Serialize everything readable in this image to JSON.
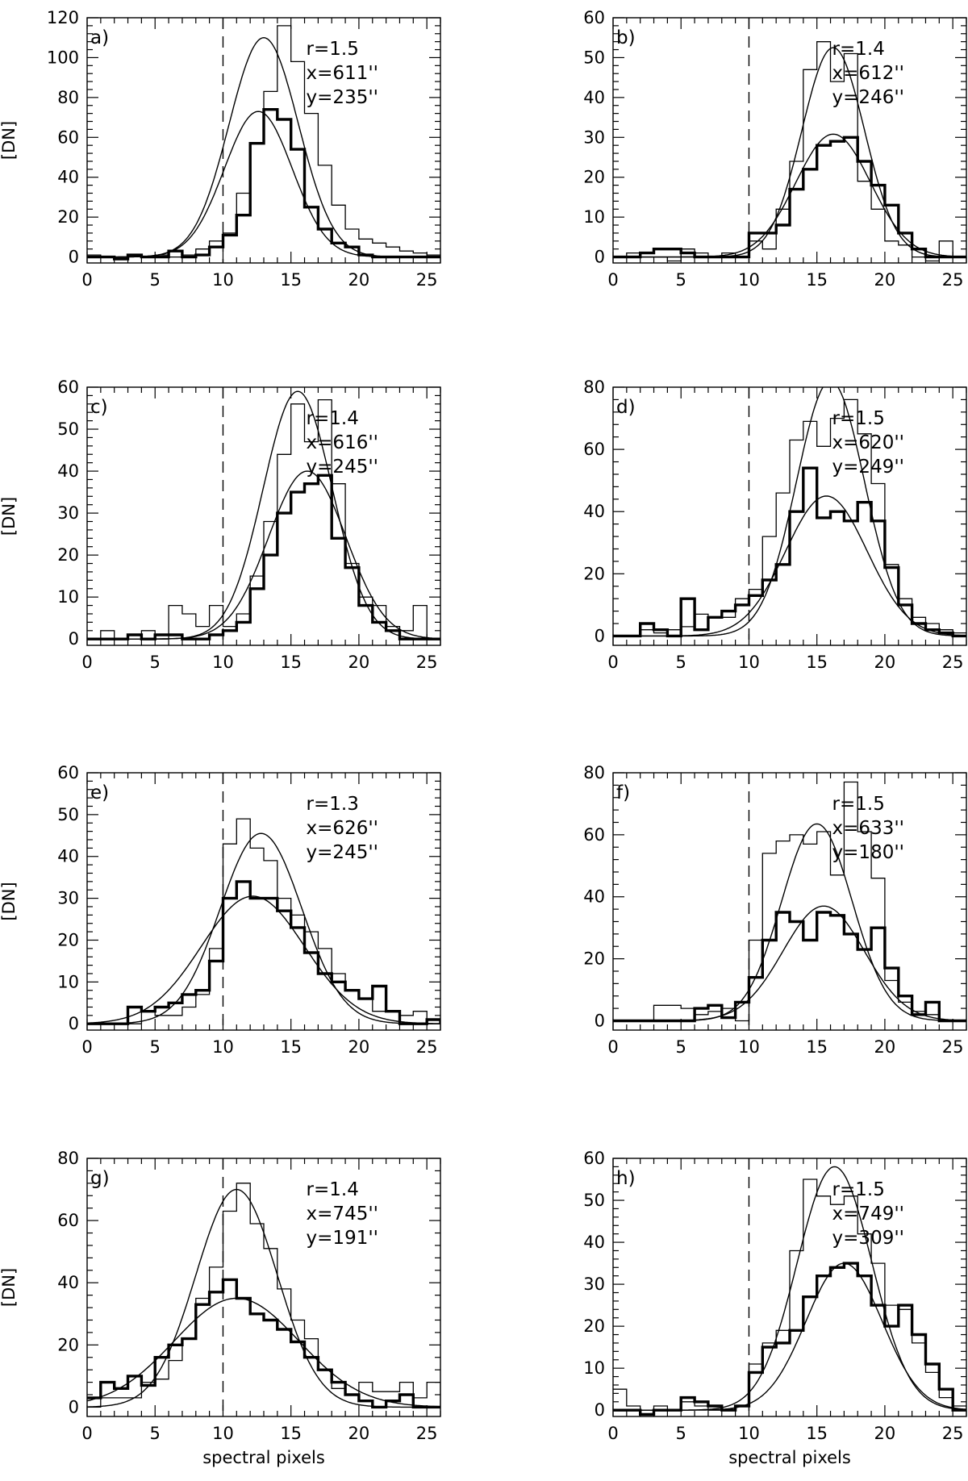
{
  "figure": {
    "xlabel": "spectral pixels",
    "ylabel": "[DN]"
  },
  "chart_data": [
    {
      "type": "line",
      "panel": "a)",
      "ylabel": "[DN]",
      "xlabel": "",
      "xlim": [
        0,
        26
      ],
      "ylim": [
        -3,
        120
      ],
      "xticks": [
        0,
        5,
        10,
        15,
        20,
        25
      ],
      "yticks": [
        0,
        20,
        40,
        60,
        80,
        100,
        120
      ],
      "ref_line_x": 10,
      "annotation": [
        "r=1.5",
        "x=611''",
        "y=235''"
      ],
      "series": [
        {
          "style": "step-thin",
          "y": [
            1,
            0,
            0,
            1,
            0,
            1,
            0,
            1,
            4,
            8,
            12,
            32,
            57,
            83,
            116,
            98,
            72,
            46,
            26,
            14,
            9,
            7,
            5,
            3,
            2,
            1,
            1
          ]
        },
        {
          "style": "step-thick",
          "y": [
            0,
            0,
            -1,
            1,
            0,
            0,
            3,
            0,
            1,
            5,
            11,
            21,
            57,
            74,
            69,
            54,
            25,
            14,
            7,
            5,
            1,
            0,
            0,
            0,
            0,
            0,
            0
          ]
        },
        {
          "style": "fit-thin",
          "mu": 13.0,
          "sigma": 2.55,
          "amp": 110,
          "base": 0
        },
        {
          "style": "fit-thin",
          "mu": 12.6,
          "sigma": 2.5,
          "amp": 73,
          "base": 0
        }
      ]
    },
    {
      "type": "line",
      "panel": "b)",
      "ylabel": "",
      "xlabel": "",
      "xlim": [
        0,
        26
      ],
      "ylim": [
        -1.5,
        60
      ],
      "xticks": [
        0,
        5,
        10,
        15,
        20,
        25
      ],
      "yticks": [
        0,
        10,
        20,
        30,
        40,
        50,
        60
      ],
      "ref_line_x": 10,
      "annotation": [
        "r=1.4",
        "x=612''",
        "y=246''"
      ],
      "series": [
        {
          "style": "step-thin",
          "y": [
            0,
            1,
            0,
            0,
            -1,
            2,
            1,
            0,
            1,
            0,
            4,
            2,
            12,
            24,
            47,
            54,
            44,
            51,
            19,
            12,
            4,
            3,
            0,
            -1,
            4,
            0,
            7
          ]
        },
        {
          "style": "step-thick",
          "y": [
            0,
            0,
            1,
            2,
            2,
            1,
            0,
            0,
            0,
            0,
            6,
            6,
            8,
            17,
            22,
            28,
            29,
            30,
            24,
            18,
            13,
            6,
            2,
            0,
            0,
            0,
            0
          ]
        },
        {
          "style": "fit-thin",
          "mu": 16.2,
          "sigma": 2.3,
          "amp": 52.5,
          "base": 0
        },
        {
          "style": "fit-thin",
          "mu": 16.2,
          "sigma": 2.75,
          "amp": 30.8,
          "base": 0
        }
      ]
    },
    {
      "type": "line",
      "panel": "c)",
      "ylabel": "[DN]",
      "xlabel": "",
      "xlim": [
        0,
        26
      ],
      "ylim": [
        -1.5,
        60
      ],
      "xticks": [
        0,
        5,
        10,
        15,
        20,
        25
      ],
      "yticks": [
        0,
        10,
        20,
        30,
        40,
        50,
        60
      ],
      "ref_line_x": 10,
      "annotation": [
        "r=1.4",
        "x=616''",
        "y=245''"
      ],
      "series": [
        {
          "style": "step-thin",
          "y": [
            0,
            2,
            0,
            0,
            2,
            0,
            8,
            6,
            3,
            8,
            3,
            6,
            15,
            28,
            44,
            56,
            47,
            57,
            37,
            18,
            10,
            8,
            3,
            2,
            8,
            0,
            0
          ]
        },
        {
          "style": "step-thick",
          "y": [
            0,
            0,
            0,
            1,
            0,
            1,
            1,
            0,
            0,
            1,
            2,
            4,
            12,
            20,
            30,
            35,
            37,
            39,
            24,
            17,
            8,
            4,
            2,
            0,
            0,
            0,
            0
          ]
        },
        {
          "style": "fit-thin",
          "mu": 15.5,
          "sigma": 2.55,
          "amp": 59,
          "base": 0
        },
        {
          "style": "fit-thin",
          "mu": 16.2,
          "sigma": 2.85,
          "amp": 40,
          "base": 0
        }
      ]
    },
    {
      "type": "line",
      "panel": "d)",
      "ylabel": "",
      "xlabel": "",
      "xlim": [
        0,
        26
      ],
      "ylim": [
        -3,
        80
      ],
      "xticks": [
        0,
        5,
        10,
        15,
        20,
        25
      ],
      "yticks": [
        0,
        20,
        40,
        60,
        80
      ],
      "ref_line_x": 10,
      "annotation": [
        "r=1.5",
        "x=620''",
        "y=249''"
      ],
      "series": [
        {
          "style": "step-thin",
          "y": [
            0,
            0,
            2,
            1,
            2,
            3,
            7,
            6,
            6,
            12,
            15,
            32,
            46,
            63,
            69,
            61,
            70,
            76,
            65,
            49,
            23,
            12,
            6,
            4,
            2,
            1,
            1
          ]
        },
        {
          "style": "step-thick",
          "y": [
            0,
            0,
            4,
            2,
            0,
            12,
            2,
            6,
            8,
            10,
            13,
            18,
            23,
            40,
            54,
            38,
            40,
            37,
            43,
            37,
            22,
            10,
            4,
            2,
            1,
            0,
            0
          ]
        },
        {
          "style": "fit-thin",
          "mu": 16.0,
          "sigma": 2.5,
          "amp": 82,
          "base": 0
        },
        {
          "style": "fit-thin",
          "mu": 15.7,
          "sigma": 3.0,
          "amp": 45,
          "base": 0
        }
      ]
    },
    {
      "type": "line",
      "panel": "e)",
      "ylabel": "[DN]",
      "xlabel": "",
      "xlim": [
        0,
        26
      ],
      "ylim": [
        -1.5,
        60
      ],
      "xticks": [
        0,
        5,
        10,
        15,
        20,
        25
      ],
      "yticks": [
        0,
        10,
        20,
        30,
        40,
        50,
        60
      ],
      "ref_line_x": 10,
      "annotation": [
        "r=1.3",
        "x=626''",
        "y=245''"
      ],
      "series": [
        {
          "style": "step-thin",
          "y": [
            0,
            0,
            0,
            0,
            3,
            2,
            2,
            4,
            7,
            18,
            43,
            49,
            42,
            39,
            30,
            26,
            22,
            18,
            12,
            8,
            6,
            3,
            3,
            2,
            3,
            1,
            1
          ]
        },
        {
          "style": "step-thick",
          "y": [
            0,
            0,
            0,
            4,
            3,
            4,
            5,
            7,
            8,
            15,
            30,
            34,
            30,
            30,
            27,
            23,
            17,
            12,
            10,
            8,
            6,
            9,
            3,
            0,
            0,
            1,
            0
          ]
        },
        {
          "style": "fit-thin",
          "mu": 12.8,
          "sigma": 3.0,
          "amp": 45.5,
          "base": 0
        },
        {
          "style": "fit-thin",
          "mu": 12.2,
          "sigma": 3.8,
          "amp": 30.5,
          "base": 0
        }
      ]
    },
    {
      "type": "line",
      "panel": "f)",
      "ylabel": "",
      "xlabel": "",
      "xlim": [
        0,
        26
      ],
      "ylim": [
        -3,
        80
      ],
      "xticks": [
        0,
        5,
        10,
        15,
        20,
        25
      ],
      "yticks": [
        0,
        20,
        40,
        60,
        80
      ],
      "ref_line_x": 10,
      "annotation": [
        "r=1.5",
        "x=633''",
        "y=180''"
      ],
      "series": [
        {
          "style": "step-thin",
          "y": [
            0,
            0,
            0,
            5,
            5,
            4,
            2,
            3,
            4,
            0,
            26,
            54,
            58,
            60,
            57,
            61,
            47,
            77,
            61,
            46,
            13,
            6,
            3,
            2,
            0,
            0,
            0
          ]
        },
        {
          "style": "step-thick",
          "y": [
            0,
            0,
            0,
            0,
            0,
            0,
            4,
            5,
            1,
            6,
            14,
            26,
            35,
            32,
            26,
            35,
            34,
            28,
            23,
            30,
            17,
            8,
            2,
            6,
            0,
            0,
            0
          ]
        },
        {
          "style": "fit-thin",
          "mu": 15.0,
          "sigma": 2.6,
          "amp": 63.5,
          "base": 0
        },
        {
          "style": "fit-thin",
          "mu": 15.5,
          "sigma": 3.0,
          "amp": 37,
          "base": 0
        }
      ]
    },
    {
      "type": "line",
      "panel": "g)",
      "ylabel": "[DN]",
      "xlabel": "spectral pixels",
      "xlim": [
        0,
        26
      ],
      "ylim": [
        -3,
        80
      ],
      "xticks": [
        0,
        5,
        10,
        15,
        20,
        25
      ],
      "yticks": [
        0,
        20,
        40,
        60,
        80
      ],
      "ref_line_x": 10,
      "annotation": [
        "r=1.4",
        "x=745''",
        "y=191''"
      ],
      "series": [
        {
          "style": "step-thin",
          "y": [
            0,
            3,
            3,
            3,
            8,
            9,
            15,
            22,
            35,
            45,
            63,
            72,
            59,
            51,
            38,
            28,
            22,
            12,
            6,
            4,
            8,
            5,
            5,
            8,
            3,
            8,
            0
          ]
        },
        {
          "style": "step-thick",
          "y": [
            3,
            8,
            6,
            10,
            7,
            16,
            20,
            22,
            33,
            37,
            41,
            35,
            30,
            28,
            25,
            21,
            16,
            12,
            8,
            4,
            2,
            0,
            2,
            4,
            0,
            0,
            0
          ]
        },
        {
          "style": "fit-thin",
          "mu": 11.0,
          "sigma": 3.0,
          "amp": 70,
          "base": 0
        },
        {
          "style": "fit-thin",
          "mu": 11.0,
          "sigma": 4.6,
          "amp": 35,
          "base": 0
        }
      ]
    },
    {
      "type": "line",
      "panel": "h)",
      "ylabel": "",
      "xlabel": "spectral pixels",
      "xlim": [
        0,
        26
      ],
      "ylim": [
        -1.5,
        60
      ],
      "xticks": [
        0,
        5,
        10,
        15,
        20,
        25
      ],
      "yticks": [
        0,
        10,
        20,
        30,
        40,
        50,
        60
      ],
      "ref_line_x": 10,
      "annotation": [
        "r=1.5",
        "x=749''",
        "y=309''"
      ],
      "series": [
        {
          "style": "step-thin",
          "y": [
            5,
            1,
            0,
            1,
            0,
            2,
            1,
            0,
            0,
            1,
            11,
            16,
            19,
            38,
            55,
            51,
            49,
            51,
            42,
            35,
            25,
            24,
            16,
            9,
            3,
            1,
            0
          ]
        },
        {
          "style": "step-thick",
          "y": [
            0,
            0,
            -1,
            0,
            0,
            3,
            2,
            1,
            0,
            1,
            9,
            15,
            16,
            19,
            27,
            32,
            34,
            35,
            32,
            25,
            20,
            25,
            18,
            11,
            5,
            0,
            0
          ]
        },
        {
          "style": "fit-thin",
          "mu": 16.3,
          "sigma": 2.75,
          "amp": 58,
          "base": 0
        },
        {
          "style": "fit-thin",
          "mu": 17.0,
          "sigma": 2.8,
          "amp": 35,
          "base": 0
        }
      ]
    }
  ]
}
